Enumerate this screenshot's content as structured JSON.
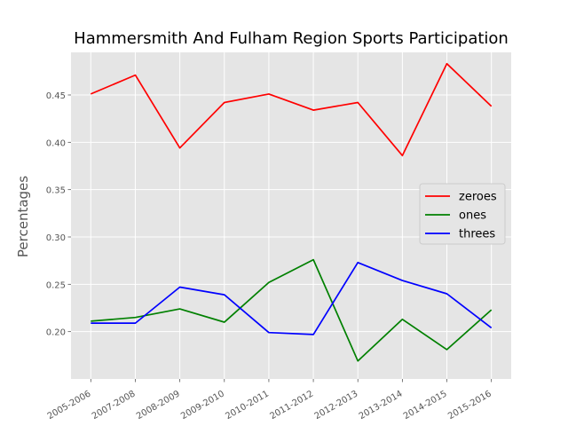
{
  "chart_data": {
    "type": "line",
    "title": "Hammersmith And Fulham Region Sports Participation",
    "xlabel": "",
    "ylabel": "Percentages",
    "categories": [
      "2005-2006",
      "2007-2008",
      "2008-2009",
      "2009-2010",
      "2010-2011",
      "2011-2012",
      "2012-2013",
      "2013-2014",
      "2014-2015",
      "2015-2016"
    ],
    "yticks": [
      "0.20",
      "0.25",
      "0.30",
      "0.35",
      "0.40",
      "0.45"
    ],
    "ylim": [
      0.15,
      0.495
    ],
    "grid": true,
    "legend_position": "center-right",
    "series": [
      {
        "name": "zeroes",
        "color": "#ff0000",
        "values": [
          0.451,
          0.471,
          0.394,
          0.442,
          0.451,
          0.434,
          0.442,
          0.386,
          0.483,
          0.438
        ]
      },
      {
        "name": "ones",
        "color": "#008000",
        "values": [
          0.211,
          0.215,
          0.224,
          0.21,
          0.252,
          0.276,
          0.169,
          0.213,
          0.181,
          0.223
        ]
      },
      {
        "name": "threes",
        "color": "#0000ff",
        "values": [
          0.209,
          0.209,
          0.247,
          0.239,
          0.199,
          0.197,
          0.273,
          0.254,
          0.24,
          0.204
        ]
      }
    ],
    "style": {
      "plot_background": "#e5e5e5",
      "grid_color": "#ffffff"
    }
  }
}
